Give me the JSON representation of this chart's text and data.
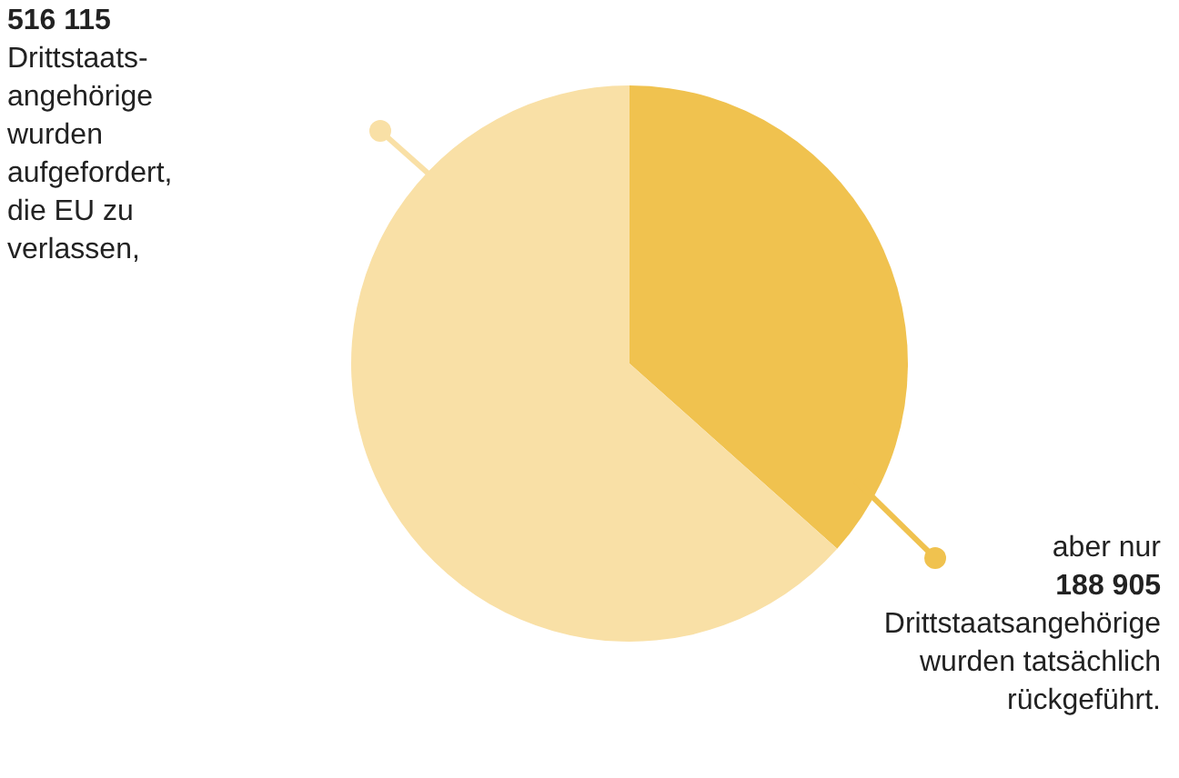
{
  "chart_data": {
    "type": "pie",
    "categories": [
      null,
      null
    ],
    "values": [
      36.6,
      63.4
    ],
    "colors": [
      "#f0c24f",
      "#f9e0a6"
    ],
    "annotations": [
      "516 115",
      "Drittstaats-angehörige wurden aufgefordert, die EU zu verlassen,",
      "aber nur",
      "188 905",
      "Drittstaatsangehörige wurden tatsächlich rückgeführt."
    ]
  }
}
